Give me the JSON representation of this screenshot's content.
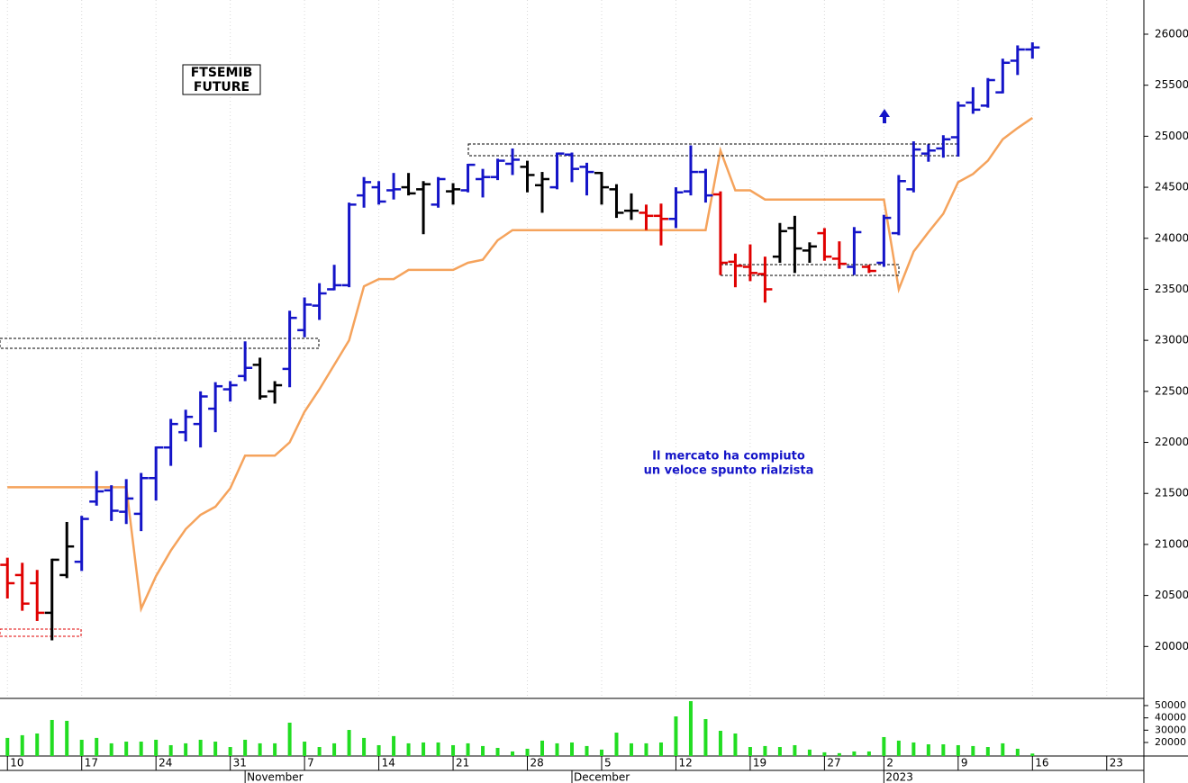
{
  "chart_data": [
    {
      "type": "ohlc",
      "label_box": [
        "FTSEMIB",
        "FUTURE"
      ],
      "annotation": [
        "Il mercato ha compiuto",
        "un veloce spunto rialzista"
      ],
      "ylim": [
        19500,
        26335
      ],
      "yticks": [
        20000,
        20500,
        21000,
        21500,
        22000,
        22500,
        23000,
        23500,
        24000,
        24500,
        25000,
        25500,
        26000
      ],
      "grid": true,
      "open": [
        20800,
        20700,
        20620,
        20330,
        20700,
        20830,
        21420,
        21530,
        21320,
        21300,
        21650,
        21950,
        22100,
        22180,
        22330,
        22520,
        22650,
        22760,
        22500,
        22720,
        23100,
        23340,
        23500,
        23540,
        24420,
        24500,
        24470,
        24500,
        24480,
        24330,
        24460,
        24470,
        24580,
        24600,
        24730,
        24700,
        24520,
        24500,
        24820,
        24700,
        24640,
        24480,
        24270,
        24250,
        24220,
        24190,
        24460,
        24650,
        24430,
        23770,
        23720,
        23650,
        23820,
        24100,
        23880,
        24050,
        23800,
        23720,
        23720,
        23760,
        24050,
        24480,
        24830,
        24880,
        24990,
        25330,
        25300,
        25430,
        25740,
        25850
      ],
      "high": [
        20870,
        20820,
        20750,
        20860,
        21220,
        21280,
        21720,
        21580,
        21640,
        21700,
        21960,
        22230,
        22320,
        22500,
        22590,
        22600,
        22990,
        22830,
        22600,
        23290,
        23420,
        23560,
        23740,
        24350,
        24600,
        24560,
        24640,
        24640,
        24560,
        24600,
        24540,
        24730,
        24680,
        24780,
        24880,
        24760,
        24650,
        24840,
        24840,
        24740,
        24650,
        24530,
        24440,
        24330,
        24340,
        24500,
        24910,
        24680,
        24460,
        23850,
        23940,
        23820,
        24150,
        24220,
        23960,
        24100,
        23970,
        24110,
        23740,
        24230,
        24620,
        24950,
        24920,
        25010,
        25340,
        25480,
        25570,
        25760,
        25890,
        25920
      ],
      "low": [
        20470,
        20350,
        20250,
        20060,
        20670,
        20740,
        21380,
        21230,
        21200,
        21130,
        21430,
        21770,
        22010,
        21950,
        22100,
        22400,
        22600,
        22420,
        22380,
        22540,
        23030,
        23200,
        23490,
        23520,
        24300,
        24330,
        24380,
        24420,
        24040,
        24300,
        24330,
        24450,
        24400,
        24570,
        24620,
        24450,
        24250,
        24480,
        24550,
        24420,
        24330,
        24200,
        24180,
        24080,
        23930,
        24100,
        24420,
        24350,
        23640,
        23520,
        23580,
        23370,
        23760,
        23660,
        23760,
        23780,
        23700,
        23640,
        23660,
        23720,
        24030,
        24450,
        24750,
        24790,
        24800,
        25220,
        25280,
        25420,
        25600,
        25760
      ],
      "close": [
        20620,
        20420,
        20330,
        20850,
        20980,
        21250,
        21520,
        21330,
        21450,
        21650,
        21950,
        22180,
        22250,
        22450,
        22550,
        22560,
        22730,
        22450,
        22560,
        23220,
        23350,
        23460,
        23540,
        24330,
        24550,
        24360,
        24480,
        24440,
        24530,
        24580,
        24480,
        24720,
        24600,
        24760,
        24770,
        24620,
        24580,
        24830,
        24680,
        24650,
        24500,
        24250,
        24270,
        24220,
        24190,
        24450,
        24650,
        24420,
        23760,
        23730,
        23660,
        23500,
        24070,
        23900,
        23920,
        23820,
        23750,
        24060,
        23680,
        24200,
        24560,
        24870,
        24860,
        24970,
        25300,
        25260,
        25550,
        25720,
        25850,
        25870
      ],
      "colors": [
        "#e00000",
        "#e00000",
        "#e00000",
        "#000000",
        "#000000",
        "#1414c8",
        "#1414c8",
        "#1414c8",
        "#1414c8",
        "#1414c8",
        "#1414c8",
        "#1414c8",
        "#1414c8",
        "#1414c8",
        "#1414c8",
        "#1414c8",
        "#1414c8",
        "#000000",
        "#000000",
        "#1414c8",
        "#1414c8",
        "#1414c8",
        "#1414c8",
        "#1414c8",
        "#1414c8",
        "#1414c8",
        "#1414c8",
        "#000000",
        "#000000",
        "#1414c8",
        "#000000",
        "#1414c8",
        "#1414c8",
        "#1414c8",
        "#1414c8",
        "#000000",
        "#000000",
        "#1414c8",
        "#1414c8",
        "#1414c8",
        "#000000",
        "#000000",
        "#000000",
        "#e00000",
        "#e00000",
        "#1414c8",
        "#1414c8",
        "#1414c8",
        "#e00000",
        "#e00000",
        "#e00000",
        "#e00000",
        "#000000",
        "#000000",
        "#000000",
        "#e00000",
        "#e00000",
        "#1414c8",
        "#e00000",
        "#1414c8",
        "#1414c8",
        "#1414c8",
        "#1414c8",
        "#1414c8",
        "#1414c8",
        "#1414c8",
        "#1414c8",
        "#1414c8",
        "#1414c8",
        "#1414c8"
      ],
      "line_color": "#f5a35c",
      "line_values": [
        21560,
        21560,
        21560,
        21560,
        21560,
        21560,
        21560,
        21560,
        21560,
        20370,
        20690,
        20940,
        21150,
        21290,
        21370,
        21550,
        21870,
        21870,
        21870,
        22000,
        22300,
        22520,
        22760,
        23000,
        23530,
        23600,
        23600,
        23690,
        23690,
        23690,
        23690,
        23760,
        23790,
        23980,
        24080,
        24080,
        24080,
        24080,
        24080,
        24080,
        24080,
        24080,
        24080,
        24080,
        24080,
        24080,
        24080,
        24080,
        24860,
        24470,
        24470,
        24380,
        24380,
        24380,
        24380,
        24380,
        24380,
        24380,
        24380,
        24380,
        23500,
        23870,
        24060,
        24240,
        24550,
        24630,
        24760,
        24970,
        25080,
        25180
      ]
    },
    {
      "type": "bar",
      "color": "#22dd22",
      "values": [
        23700,
        25900,
        27300,
        38300,
        37600,
        22200,
        23700,
        19300,
        20700,
        20700,
        22200,
        17800,
        19300,
        22200,
        20700,
        16300,
        22200,
        19300,
        19300,
        36100,
        20700,
        16300,
        19300,
        30200,
        23700,
        17800,
        25200,
        19300,
        20000,
        20000,
        17800,
        19300,
        17100,
        15600,
        12700,
        14900,
        21500,
        19300,
        20000,
        17100,
        14200,
        28000,
        19300,
        19300,
        20000,
        41200,
        53600,
        39000,
        29500,
        27300,
        16300,
        17100,
        16300,
        17800,
        14200,
        12000,
        11300,
        12700,
        12700,
        24400,
        21500,
        20000,
        18500,
        18500,
        17800,
        17100,
        16300,
        19300,
        14900,
        11000
      ],
      "ylim": [
        9000,
        55100
      ],
      "yticks": [
        20000,
        30000,
        40000,
        50000
      ],
      "xlim": [
        -0.5,
        76.5
      ],
      "xticks": [
        {
          "value": 0,
          "label": "10"
        },
        {
          "value": 5,
          "label": "17"
        },
        {
          "value": 10,
          "label": "24"
        },
        {
          "value": 15,
          "label": "31"
        },
        {
          "value": 20,
          "label": "7"
        },
        {
          "value": 25,
          "label": "14"
        },
        {
          "value": 30,
          "label": "21"
        },
        {
          "value": 35,
          "label": "28"
        },
        {
          "value": 40,
          "label": "5"
        },
        {
          "value": 45,
          "label": "12"
        },
        {
          "value": 50,
          "label": "19"
        },
        {
          "value": 55,
          "label": "27"
        },
        {
          "value": 59,
          "label": "2"
        },
        {
          "value": 64,
          "label": "9"
        },
        {
          "value": 69,
          "label": "16"
        },
        {
          "value": 74,
          "label": "23"
        }
      ],
      "month_labels": [
        {
          "value": 16,
          "label": "November"
        },
        {
          "value": 38,
          "label": "December"
        },
        {
          "value": 59,
          "label": "2023"
        }
      ]
    }
  ]
}
